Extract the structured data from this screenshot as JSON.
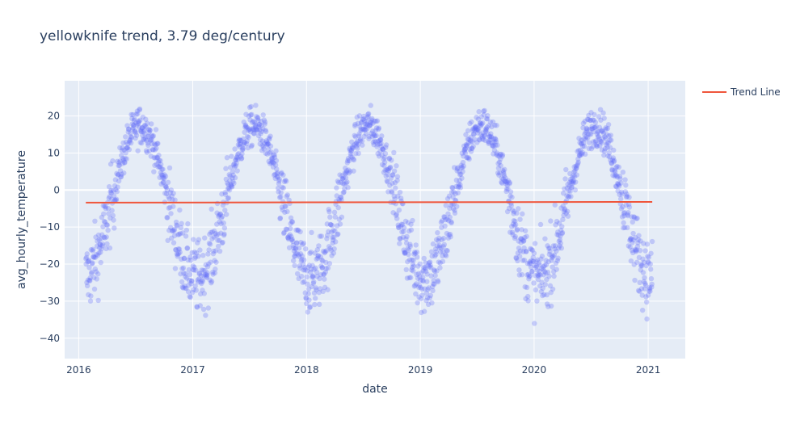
{
  "chart_data": {
    "type": "scatter",
    "title": "yellowknife trend, 3.79 deg/century",
    "xlabel": "date",
    "ylabel": "avg_hourly_temperature",
    "xlim": [
      "2015-11-17",
      "2021-04-30"
    ],
    "ylim": [
      -45.5,
      29.5
    ],
    "x_ticks": [
      "2016",
      "2017",
      "2018",
      "2019",
      "2020",
      "2021"
    ],
    "y_ticks": [
      20,
      10,
      0,
      -10,
      -20,
      -30,
      -40
    ],
    "grid": true,
    "legend": {
      "position": "top-right",
      "entries": [
        "Trend Line"
      ]
    },
    "scatter_style": {
      "color": "#636efa",
      "opacity": 0.3
    },
    "seasonal_profile": {
      "start_date": "2016-01-24",
      "end_date": "2021-01-14",
      "annual_mean": -3.2,
      "amplitude": 20.5,
      "peak_day_of_year": 198,
      "typical_spread": 6
    },
    "series": [
      {
        "name": "Trend Line",
        "type": "line",
        "color": "#ef553b",
        "x": [
          "2016-01-24",
          "2021-01-14"
        ],
        "y": [
          -3.4,
          -3.2
        ]
      }
    ]
  },
  "colors": {
    "plot_bg": "#e5ecf6",
    "grid": "#ffffff",
    "text": "#2a3f5f",
    "points": "#636efa",
    "trend": "#ef553b"
  }
}
